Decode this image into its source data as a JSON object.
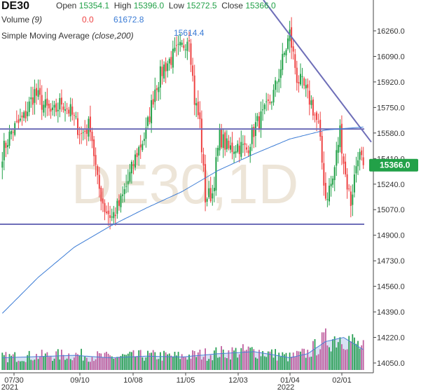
{
  "header": {
    "symbol": "DE30",
    "open_label": "Open",
    "open_value": "15354.1",
    "high_label": "High",
    "high_value": "15396.0",
    "low_label": "Low",
    "low_value": "15272.5",
    "close_label": "Close",
    "close_value": "15366.0",
    "volume_label": "Volume",
    "volume_period": "(9)",
    "volume_value_1": "0.0",
    "volume_value_2": "61672.8",
    "sma_label": "Simple Moving Average",
    "sma_params": "(close,200)",
    "sma_value": "15614.4"
  },
  "watermark": "DE30,1D",
  "price_tag": "15366.0",
  "colors": {
    "up": "#22a148",
    "down": "#ee4444",
    "sma": "#3a7bd5",
    "trendline": "#6e6eb8",
    "volume_up": "#2aa055",
    "volume_down": "#c060a0",
    "volume_ma": "#4a7fd6",
    "volume_ma_fill": "#c6d5f0"
  },
  "chart_data": {
    "type": "candlestick",
    "y_axis_ticks": [
      "16260.0",
      "16090.0",
      "15920.0",
      "15750.0",
      "15580.0",
      "15410.0",
      "15240.0",
      "15070.0",
      "14900.0",
      "14730.0",
      "14560.0",
      "14390.0",
      "14220.0",
      "14050.0"
    ],
    "y_range": [
      14000,
      16320
    ],
    "x_axis_ticks": [
      {
        "label": "07/30",
        "sub": "2021"
      },
      {
        "label": "09/10",
        "sub": ""
      },
      {
        "label": "10/08",
        "sub": ""
      },
      {
        "label": "11/05",
        "sub": ""
      },
      {
        "label": "12/03",
        "sub": ""
      },
      {
        "label": "01/04",
        "sub": "2022"
      },
      {
        "label": "02/01",
        "sub": ""
      }
    ],
    "horizontal_levels": [
      15607,
      14973
    ],
    "trendline": {
      "from": [
        16320,
        "start"
      ],
      "to": [
        15520,
        "end"
      ]
    },
    "close_key_points": [
      [
        0,
        15450
      ],
      [
        5,
        15590
      ],
      [
        12,
        15680
      ],
      [
        18,
        15850
      ],
      [
        22,
        15780
      ],
      [
        28,
        15700
      ],
      [
        33,
        15790
      ],
      [
        38,
        15720
      ],
      [
        44,
        15570
      ],
      [
        49,
        15640
      ],
      [
        53,
        15250
      ],
      [
        57,
        15080
      ],
      [
        61,
        15020
      ],
      [
        66,
        15120
      ],
      [
        70,
        15260
      ],
      [
        75,
        15450
      ],
      [
        80,
        15580
      ],
      [
        85,
        15880
      ],
      [
        90,
        16020
      ],
      [
        95,
        16090
      ],
      [
        100,
        16150
      ],
      [
        104,
        16240
      ],
      [
        107,
        15800
      ],
      [
        110,
        15650
      ],
      [
        113,
        15150
      ],
      [
        117,
        15180
      ],
      [
        121,
        15560
      ],
      [
        126,
        15470
      ],
      [
        131,
        15500
      ],
      [
        136,
        15470
      ],
      [
        141,
        15630
      ],
      [
        146,
        15710
      ],
      [
        151,
        15840
      ],
      [
        156,
        16060
      ],
      [
        160,
        16240
      ],
      [
        164,
        15950
      ],
      [
        168,
        15880
      ],
      [
        172,
        15780
      ],
      [
        176,
        15620
      ],
      [
        180,
        15150
      ],
      [
        184,
        15270
      ],
      [
        188,
        15600
      ],
      [
        191,
        15300
      ],
      [
        194,
        15120
      ],
      [
        198,
        15450
      ],
      [
        201,
        15366
      ]
    ],
    "sma_200_key_points": [
      [
        0,
        14380
      ],
      [
        20,
        14620
      ],
      [
        40,
        14820
      ],
      [
        60,
        14960
      ],
      [
        80,
        15080
      ],
      [
        100,
        15190
      ],
      [
        120,
        15330
      ],
      [
        140,
        15440
      ],
      [
        160,
        15540
      ],
      [
        180,
        15600
      ],
      [
        201,
        15620
      ]
    ],
    "volume_ma_key_points": [
      [
        0,
        0.3
      ],
      [
        40,
        0.36
      ],
      [
        60,
        0.3
      ],
      [
        80,
        0.34
      ],
      [
        100,
        0.32
      ],
      [
        120,
        0.4
      ],
      [
        140,
        0.45
      ],
      [
        150,
        0.38
      ],
      [
        160,
        0.3
      ],
      [
        170,
        0.4
      ],
      [
        180,
        0.7
      ],
      [
        190,
        0.8
      ],
      [
        201,
        0.5
      ]
    ]
  }
}
